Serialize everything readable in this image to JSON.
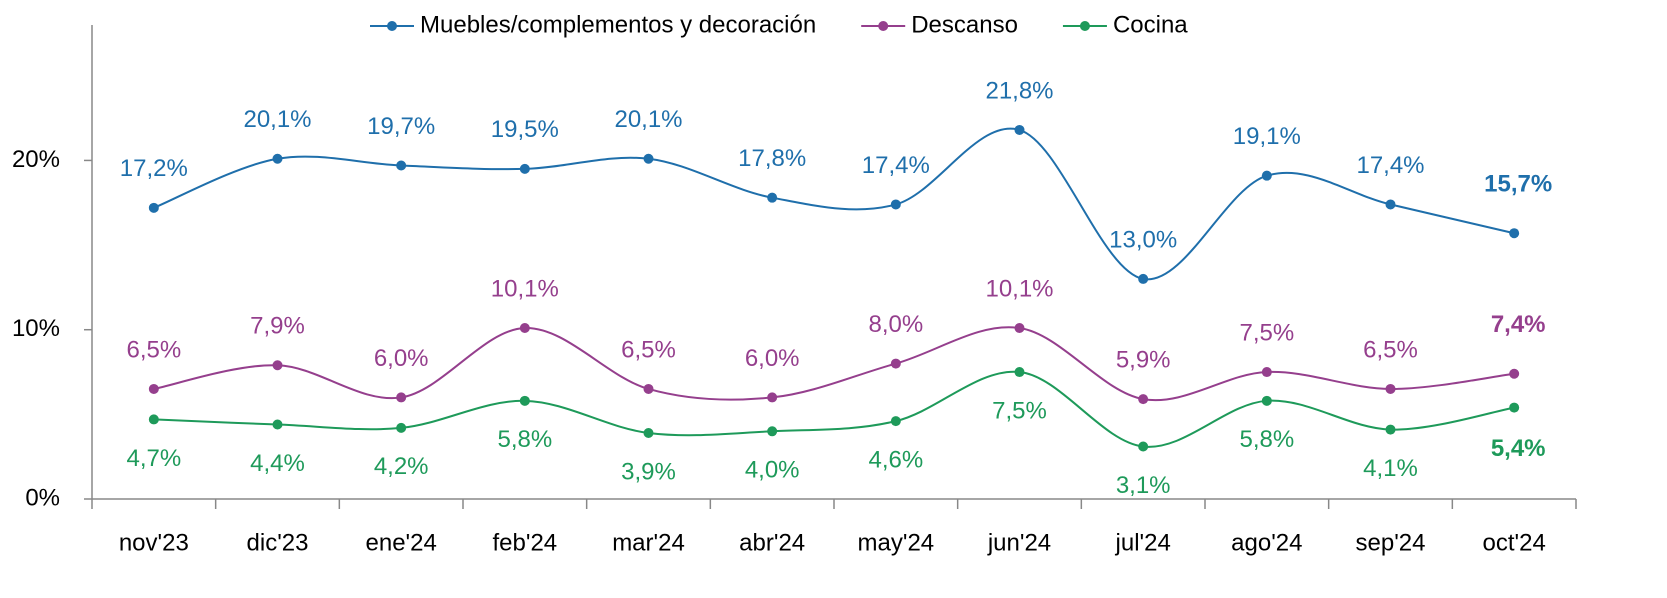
{
  "chart_data": {
    "type": "line",
    "categories": [
      "nov'23",
      "dic'23",
      "ene'24",
      "feb'24",
      "mar'24",
      "abr'24",
      "may'24",
      "jun'24",
      "jul'24",
      "ago'24",
      "sep'24",
      "oct'24"
    ],
    "series": [
      {
        "name": "Muebles/complementos y decoración",
        "color": "#1f6fab",
        "values": [
          17.2,
          20.1,
          19.7,
          19.5,
          20.1,
          17.8,
          17.4,
          21.8,
          13.0,
          19.1,
          17.4,
          15.7
        ],
        "value_labels": [
          "17,2%",
          "20,1%",
          "19,7%",
          "19,5%",
          "20,1%",
          "17,8%",
          "17,4%",
          "21,8%",
          "13,0%",
          "19,1%",
          "17,4%",
          "15,7%"
        ]
      },
      {
        "name": "Descanso",
        "color": "#953f8d",
        "values": [
          6.5,
          7.9,
          6.0,
          10.1,
          6.5,
          6.0,
          8.0,
          10.1,
          5.9,
          7.5,
          6.5,
          7.4
        ],
        "value_labels": [
          "6,5%",
          "7,9%",
          "6,0%",
          "10,1%",
          "6,5%",
          "6,0%",
          "8,0%",
          "10,1%",
          "5,9%",
          "7,5%",
          "6,5%",
          "7,4%"
        ]
      },
      {
        "name": "Cocina",
        "color": "#1e9a5a",
        "values": [
          4.7,
          4.4,
          4.2,
          5.8,
          3.9,
          4.0,
          4.6,
          7.5,
          3.1,
          5.8,
          4.1,
          5.4
        ],
        "value_labels": [
          "4,7%",
          "4,4%",
          "4,2%",
          "5,8%",
          "3,9%",
          "4,0%",
          "4,6%",
          "7,5%",
          "3,1%",
          "5,8%",
          "4,1%",
          "5,4%"
        ]
      }
    ],
    "ylim": [
      0,
      28
    ],
    "yticks": [
      {
        "value": 0,
        "label": "0%"
      },
      {
        "value": 10,
        "label": "10%"
      },
      {
        "value": 20,
        "label": "20%"
      }
    ],
    "grid": false,
    "legend": "top"
  }
}
